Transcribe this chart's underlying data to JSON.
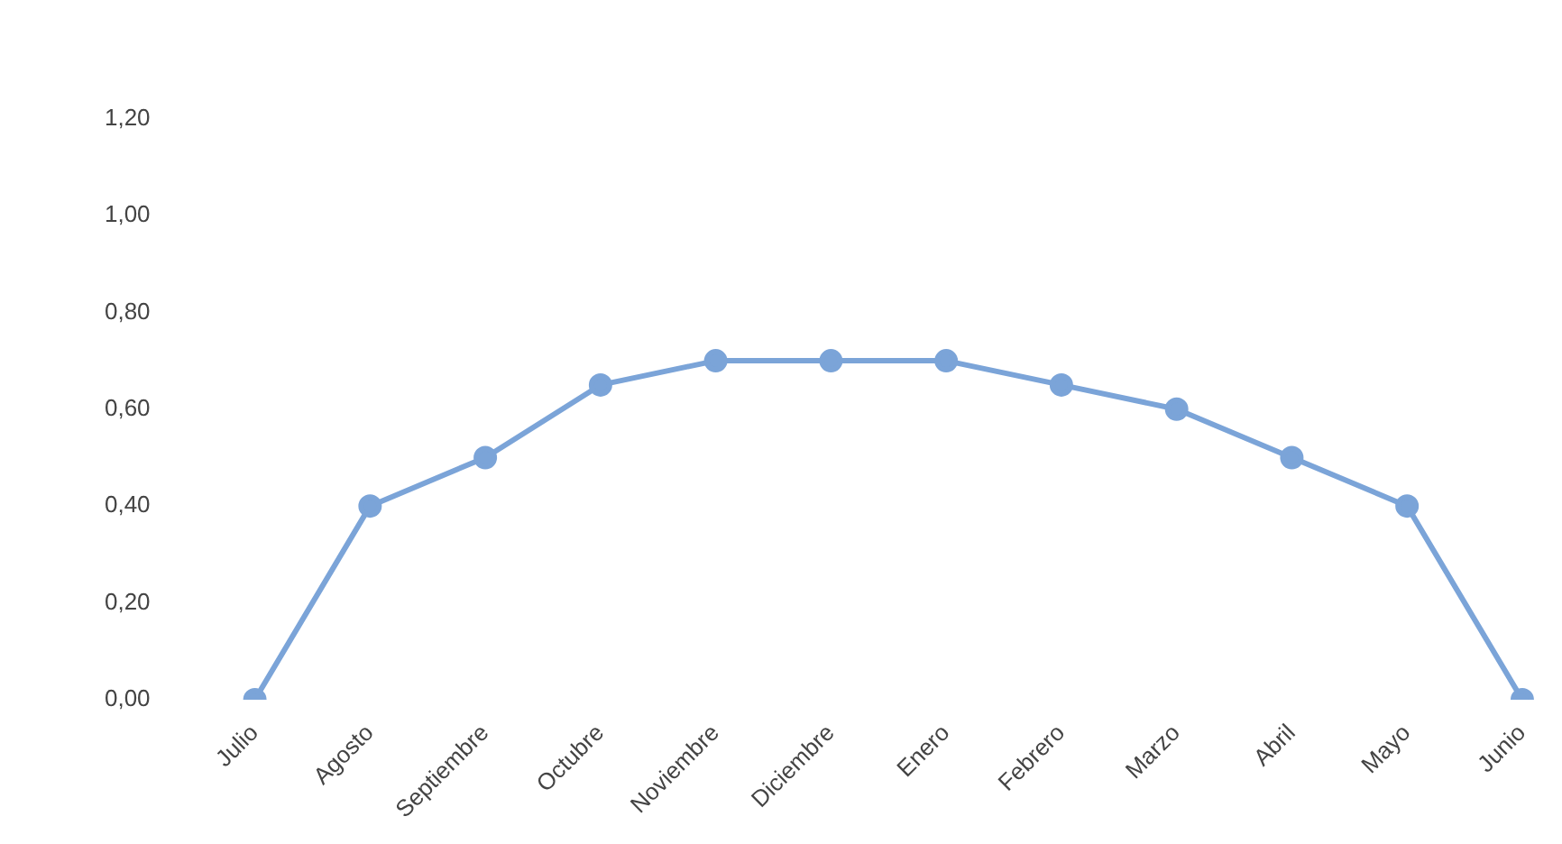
{
  "chart_data": {
    "type": "line",
    "categories": [
      "Julio",
      "Agosto",
      "Septiembre",
      "Octubre",
      "Noviembre",
      "Diciembre",
      "Enero",
      "Febrero",
      "Marzo",
      "Abril",
      "Mayo",
      "Junio"
    ],
    "series": [
      {
        "color": "#7ba4d8",
        "values": [
          0,
          0.4,
          0.5,
          0.65,
          0.7,
          0.7,
          0.7,
          0.65,
          0.6,
          0.5,
          0.4,
          0
        ]
      }
    ],
    "ylim": [
      0,
      1.2
    ],
    "yticks": [
      {
        "value": 0,
        "label": "0,00"
      },
      {
        "value": 0.2,
        "label": "0,20"
      },
      {
        "value": 0.4,
        "label": "0,40"
      },
      {
        "value": 0.6,
        "label": "0,60"
      },
      {
        "value": 0.8,
        "label": "0,80"
      },
      {
        "value": 1,
        "label": "1,00"
      },
      {
        "value": 1.2,
        "label": "1,20"
      }
    ],
    "grid": false,
    "legend": false,
    "marker": "circle",
    "line_style": "solid"
  }
}
